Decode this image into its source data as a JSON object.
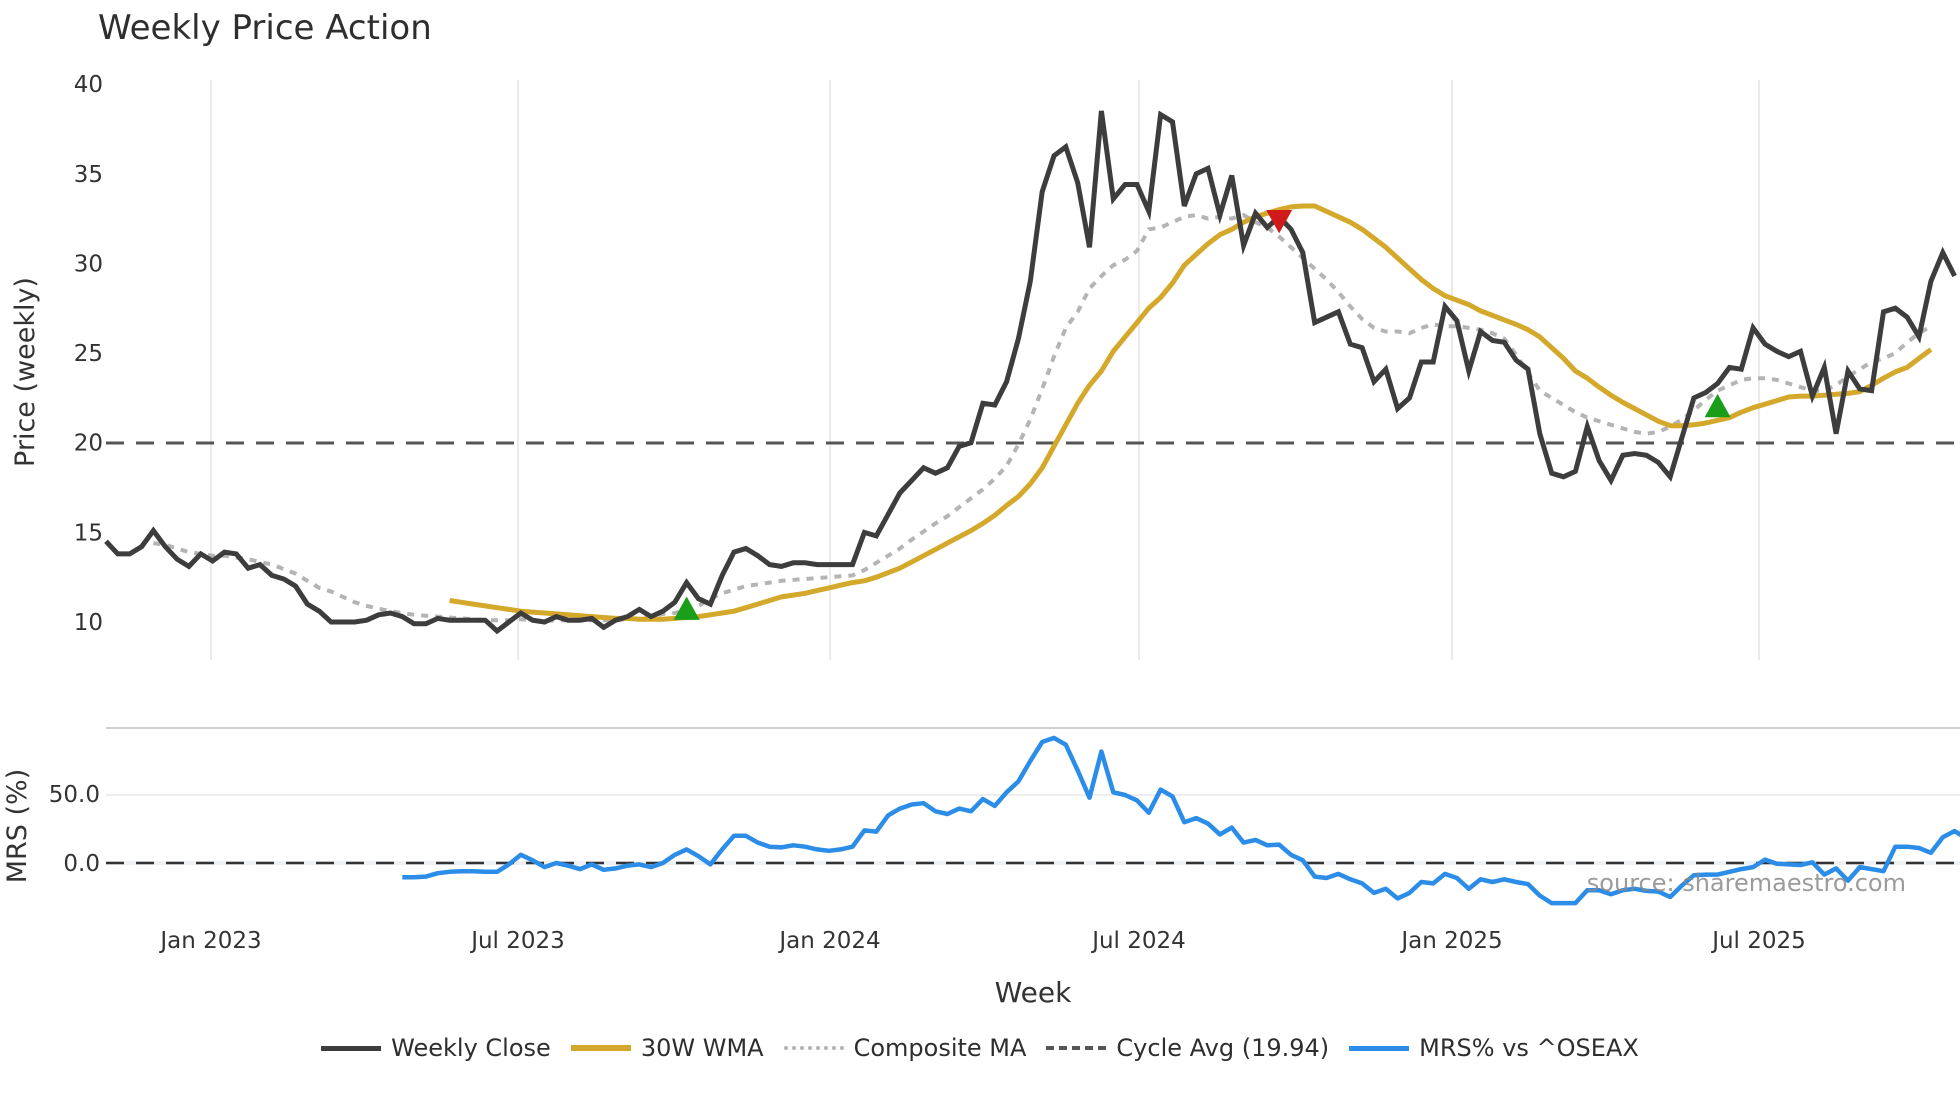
{
  "chart_data": [
    {
      "type": "line",
      "title": "Weekly Price Action",
      "xlabel": "Week",
      "ylabel": "Price (weekly)",
      "ylim": [
        8,
        40
      ],
      "yticks": [
        10,
        15,
        20,
        25,
        30,
        35,
        40
      ],
      "xticks": [
        "Jan 2023",
        "Jul 2023",
        "Jan 2024",
        "Jul 2024",
        "Jan 2025",
        "Jul 2025"
      ],
      "x_start": "2022-11-07",
      "x_step": "1 week",
      "grid": true,
      "cycle_avg": 19.94,
      "series": [
        {
          "name": "Weekly Close",
          "color": "#3d3d3d",
          "values": [
            14.5,
            13.8,
            13.8,
            14.2,
            15.1,
            14.2,
            13.5,
            13.1,
            13.8,
            13.4,
            13.9,
            13.8,
            13.0,
            13.2,
            12.6,
            12.4,
            12.0,
            11.0,
            10.6,
            10.0,
            10.0,
            10.0,
            10.1,
            10.4,
            10.5,
            10.3,
            9.9,
            9.9,
            10.2,
            10.1,
            10.1,
            10.1,
            10.1,
            9.5,
            10.0,
            10.5,
            10.1,
            10.0,
            10.3,
            10.1,
            10.1,
            10.2,
            9.7,
            10.1,
            10.3,
            10.7,
            10.3,
            10.6,
            11.1,
            12.2,
            11.3,
            11.0,
            12.6,
            13.9,
            14.1,
            13.7,
            13.2,
            13.1,
            13.3,
            13.3,
            13.2,
            13.2,
            13.2,
            13.2,
            15.0,
            14.8,
            16.0,
            17.2,
            17.9,
            18.6,
            18.3,
            18.6,
            19.8,
            20.0,
            22.2,
            22.1,
            23.4,
            25.8,
            29.0,
            34.0,
            36.0,
            36.5,
            34.5,
            30.9,
            38.5,
            33.6,
            34.4,
            34.4,
            32.9,
            38.3,
            37.9,
            33.2,
            35.0,
            35.3,
            32.7,
            34.9,
            31.0,
            32.8,
            32.0,
            32.6,
            31.9,
            30.6,
            26.7,
            27.0,
            27.3,
            25.5,
            25.3,
            23.4,
            24.1,
            21.9,
            22.5,
            24.5,
            24.5,
            27.6,
            26.8,
            24.0,
            26.2,
            25.7,
            25.6,
            24.6,
            24.1,
            20.5,
            18.3,
            18.1,
            18.4,
            20.9,
            19.0,
            17.9,
            19.3,
            19.4,
            19.3,
            18.9,
            18.1,
            20.3,
            22.5,
            22.8,
            23.3,
            24.2,
            24.1,
            26.4,
            25.5,
            25.1,
            24.8,
            25.1,
            22.6,
            24.2,
            20.5,
            24.0,
            23.0,
            22.9,
            27.3,
            27.5,
            27.0,
            25.9,
            29.0,
            30.6,
            29.3
          ]
        },
        {
          "name": "30W WMA",
          "color": "#d4a82a",
          "start_index": 29,
          "values": [
            11.2,
            11.1,
            11.0,
            10.9,
            10.8,
            10.7,
            10.6,
            10.55,
            10.5,
            10.45,
            10.4,
            10.35,
            10.3,
            10.25,
            10.2,
            10.2,
            10.15,
            10.15,
            10.15,
            10.2,
            10.25,
            10.3,
            10.4,
            10.5,
            10.6,
            10.8,
            11.0,
            11.2,
            11.4,
            11.5,
            11.6,
            11.75,
            11.9,
            12.05,
            12.2,
            12.3,
            12.5,
            12.75,
            13.0,
            13.35,
            13.7,
            14.05,
            14.4,
            14.75,
            15.1,
            15.5,
            15.95,
            16.5,
            17.0,
            17.7,
            18.6,
            19.8,
            21.0,
            22.2,
            23.2,
            24.0,
            25.1,
            25.9,
            26.7,
            27.5,
            28.1,
            28.9,
            29.9,
            30.5,
            31.1,
            31.6,
            31.9,
            32.3,
            32.6,
            32.8,
            33.0,
            33.15,
            33.2,
            33.2,
            32.9,
            32.6,
            32.3,
            31.9,
            31.4,
            30.9,
            30.3,
            29.7,
            29.1,
            28.6,
            28.2,
            27.95,
            27.7,
            27.35,
            27.1,
            26.85,
            26.6,
            26.3,
            25.9,
            25.3,
            24.7,
            24.0,
            23.6,
            23.1,
            22.65,
            22.25,
            21.9,
            21.55,
            21.2,
            20.95,
            20.95,
            21.0,
            21.1,
            21.25,
            21.4,
            21.7,
            21.95,
            22.15,
            22.35,
            22.55,
            22.6,
            22.6,
            22.65,
            22.7,
            22.75,
            22.85,
            23.2,
            23.6,
            23.95,
            24.2,
            24.7,
            25.2
          ]
        },
        {
          "name": "Composite MA",
          "color": "#b4b4b4",
          "start_index": 4,
          "values": [
            14.4,
            14.3,
            14.1,
            13.9,
            13.8,
            13.7,
            13.7,
            13.6,
            13.5,
            13.35,
            13.2,
            12.95,
            12.7,
            12.3,
            11.9,
            11.7,
            11.4,
            11.1,
            10.9,
            10.75,
            10.6,
            10.5,
            10.4,
            10.35,
            10.3,
            10.25,
            10.2,
            10.15,
            10.1,
            10.1,
            10.1,
            10.15,
            10.1,
            10.05,
            10.1,
            10.1,
            10.1,
            10.1,
            10.1,
            10.1,
            10.15,
            10.2,
            10.3,
            10.45,
            10.5,
            10.7,
            10.9,
            11.3,
            11.6,
            11.8,
            12.0,
            12.1,
            12.2,
            12.3,
            12.35,
            12.4,
            12.45,
            12.5,
            12.55,
            12.6,
            12.9,
            13.3,
            13.7,
            14.1,
            14.6,
            15.05,
            15.5,
            15.9,
            16.4,
            16.9,
            17.4,
            18.0,
            18.7,
            19.9,
            21.3,
            23.0,
            24.8,
            26.4,
            27.3,
            28.6,
            29.3,
            29.9,
            30.2,
            30.7,
            31.9,
            32.0,
            32.3,
            32.6,
            32.7,
            32.5,
            32.6,
            32.5,
            32.7,
            32.3,
            32.0,
            31.5,
            30.9,
            30.3,
            29.7,
            29.1,
            28.4,
            27.6,
            26.9,
            26.4,
            26.2,
            26.2,
            26.1,
            26.4,
            26.6,
            26.5,
            26.5,
            26.4,
            26.3,
            26.1,
            25.8,
            24.9,
            23.9,
            22.9,
            22.5,
            22.1,
            21.7,
            21.4,
            21.2,
            21.0,
            20.8,
            20.6,
            20.5,
            20.6,
            20.9,
            21.3,
            21.8,
            22.4,
            22.9,
            23.2,
            23.5,
            23.6,
            23.6,
            23.5,
            23.3,
            23.1,
            22.9,
            22.9,
            23.2,
            23.7,
            24.1,
            24.5,
            24.7,
            25.0,
            25.6,
            26.1,
            26.5
          ]
        }
      ],
      "markers": [
        {
          "type": "buy",
          "shape": "triangle-up",
          "color": "#1a9e1a",
          "index": 49,
          "value": 10.7
        },
        {
          "type": "sell",
          "shape": "triangle-down",
          "color": "#d11a1a",
          "index": 99,
          "value": 32.4
        },
        {
          "type": "buy",
          "shape": "triangle-up",
          "color": "#1a9e1a",
          "index": 136,
          "value": 22.0
        }
      ]
    },
    {
      "type": "line",
      "ylabel": "MRS (%)",
      "yticks": [
        0.0,
        50.0
      ],
      "ylim": [
        -45,
        100
      ],
      "zero_line": 0.0,
      "series": [
        {
          "name": "MRS% vs ^OSEAX",
          "color": "#2b8de8",
          "start_index": 25,
          "values": [
            -10.5,
            -10.5,
            -10.0,
            -7.5,
            -6.5,
            -6.0,
            -6.0,
            -6.5,
            -6.5,
            -1.0,
            6.0,
            2.0,
            -3.0,
            0.0,
            -2.0,
            -4.5,
            -1.0,
            -5.0,
            -4.0,
            -2.0,
            -1.0,
            -3.0,
            0.0,
            6.0,
            10.0,
            5.0,
            -1.0,
            10.0,
            20.0,
            20.0,
            15.0,
            12.0,
            11.5,
            13.0,
            12.0,
            10.0,
            9.0,
            10.0,
            12.0,
            24.0,
            23.0,
            35.0,
            40.0,
            43.0,
            44.0,
            38.0,
            36.0,
            40.0,
            38.0,
            47.0,
            42.0,
            52.0,
            60.0,
            75.0,
            89.0,
            92.0,
            87.0,
            68.0,
            48.0,
            82.0,
            52.0,
            50.0,
            46.0,
            37.0,
            54.0,
            49.0,
            30.0,
            33.0,
            29.0,
            21.0,
            26.0,
            15.0,
            17.0,
            13.0,
            13.5,
            6.0,
            2.0,
            -10.0,
            -11.0,
            -8.0,
            -12.0,
            -15.0,
            -22.0,
            -19.0,
            -26.0,
            -22.0,
            -14.0,
            -15.0,
            -8.0,
            -11.0,
            -19.0,
            -12.0,
            -14.0,
            -12.0,
            -14.0,
            -15.5,
            -24.0,
            -29.5,
            -29.5,
            -29.5,
            -20.0,
            -20.0,
            -23.0,
            -20.0,
            -19.0,
            -20.5,
            -21.0,
            -25.0,
            -16.5,
            -9.0,
            -8.5,
            -8.5,
            -6.5,
            -4.5,
            -3.0,
            2.5,
            -0.5,
            -1.0,
            -1.5,
            0.5,
            -8.5,
            -4.0,
            -13.0,
            -3.0,
            -4.5,
            -6.0,
            12.0,
            12.0,
            11.0,
            7.5,
            19.0,
            23.5,
            18.0
          ]
        }
      ]
    }
  ],
  "title": "Weekly Price Action",
  "axes": {
    "price_ylabel": "Price (weekly)",
    "mrs_ylabel": "MRS (%)",
    "xlabel": "Week",
    "price_ticks": [
      "10",
      "15",
      "20",
      "25",
      "30",
      "35",
      "40"
    ],
    "mrs_ticks": [
      "0.0",
      "50.0"
    ],
    "x_ticks": [
      "Jan 2023",
      "Jul 2023",
      "Jan 2024",
      "Jul 2024",
      "Jan 2025",
      "Jul 2025"
    ]
  },
  "legend": {
    "items": [
      {
        "label": "Weekly Close"
      },
      {
        "label": "30W WMA"
      },
      {
        "label": "Composite MA"
      },
      {
        "label": "Cycle Avg (19.94)"
      },
      {
        "label": "MRS% vs ^OSEAX"
      }
    ]
  },
  "watermark": "source: sharemaestro.com"
}
